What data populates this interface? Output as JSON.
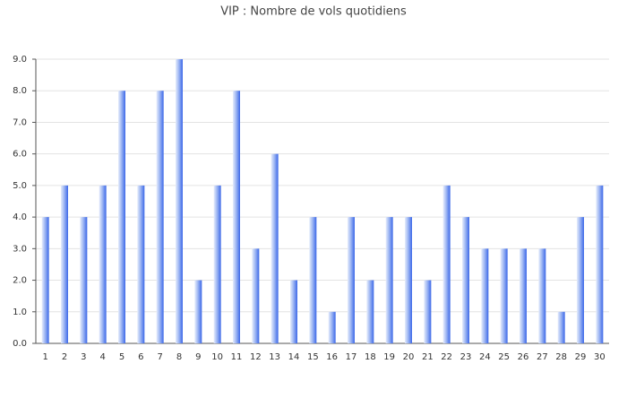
{
  "chart_data": {
    "type": "bar",
    "title": "VIP : Nombre de vols quotidiens",
    "categories": [
      "1",
      "2",
      "3",
      "4",
      "5",
      "6",
      "7",
      "8",
      "9",
      "10",
      "11",
      "12",
      "13",
      "14",
      "15",
      "16",
      "17",
      "18",
      "19",
      "20",
      "21",
      "22",
      "23",
      "24",
      "25",
      "26",
      "27",
      "28",
      "29",
      "30"
    ],
    "values": [
      4,
      5,
      4,
      5,
      8,
      5,
      8,
      9,
      2,
      5,
      8,
      3,
      6,
      2,
      4,
      1,
      4,
      2,
      4,
      4,
      2,
      5,
      4,
      3,
      3,
      3,
      3,
      1,
      4,
      5
    ],
    "color": "#3c68e8",
    "ylim": [
      0,
      9
    ],
    "yticks": [
      {
        "value": 0,
        "label": "0.0"
      },
      {
        "value": 1,
        "label": "1.0"
      },
      {
        "value": 2,
        "label": "2.0"
      },
      {
        "value": 3,
        "label": "3.0"
      },
      {
        "value": 4,
        "label": "4.0"
      },
      {
        "value": 5,
        "label": "5.0"
      },
      {
        "value": 6,
        "label": "6.0"
      },
      {
        "value": 7,
        "label": "7.0"
      },
      {
        "value": 8,
        "label": "8.0"
      },
      {
        "value": 9,
        "label": "9.0"
      }
    ],
    "grid": true
  }
}
